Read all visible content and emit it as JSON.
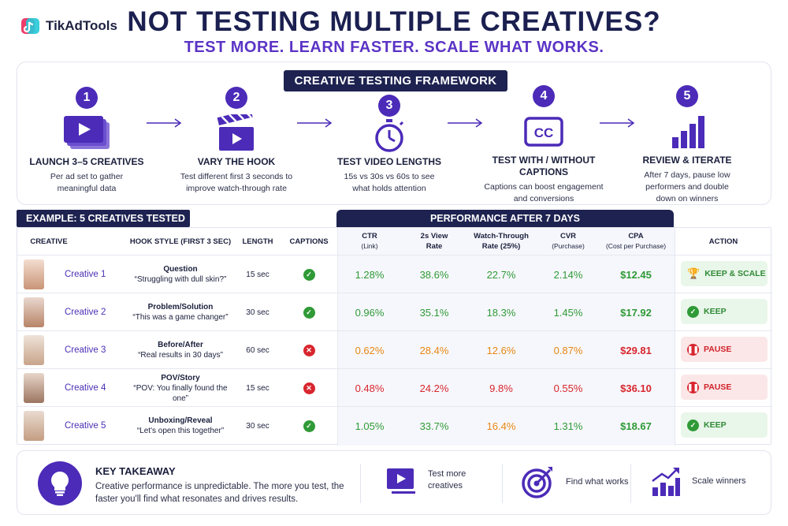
{
  "header": {
    "brand": "TikAdTools",
    "title": "NOT TESTING MULTIPLE CREATIVES?",
    "subtitle": "TEST MORE. LEARN FASTER. SCALE WHAT WORKS."
  },
  "framework": {
    "title": "CREATIVE TESTING FRAMEWORK",
    "steps": [
      {
        "num": "1",
        "icon": "video-stack-icon",
        "title": "LAUNCH 3–5 CREATIVES",
        "desc": "Per ad set to gather meaningful data"
      },
      {
        "num": "2",
        "icon": "clapperboard-icon",
        "title": "VARY THE HOOK",
        "desc": "Test different first 3 seconds to improve watch-through rate"
      },
      {
        "num": "3",
        "icon": "stopwatch-icon",
        "title": "TEST VIDEO LENGTHS",
        "desc": "15s vs 30s vs 60s to see what holds attention"
      },
      {
        "num": "4",
        "icon": "captions-icon",
        "title": "TEST WITH / WITHOUT CAPTIONS",
        "desc": "Captions can boost engagement and conversions"
      },
      {
        "num": "5",
        "icon": "bar-chart-icon",
        "title": "REVIEW & ITERATE",
        "desc": "After 7 days, pause low performers and double down on winners"
      }
    ]
  },
  "example_label": "EXAMPLE: 5 CREATIVES TESTED",
  "performance_label": "PERFORMANCE AFTER 7 DAYS",
  "table": {
    "headers": {
      "creative": "CREATIVE",
      "hook": "HOOK STYLE (FIRST 3 SEC)",
      "length": "LENGTH",
      "captions": "CAPTIONS",
      "ctr": "CTR",
      "ctr_sub": "(Link)",
      "view": "2s View",
      "view_sub": "Rate",
      "wtr": "Watch-Through",
      "wtr_sub": "Rate (25%)",
      "cvr": "CVR",
      "cvr_sub": "(Purchase)",
      "cpa": "CPA",
      "cpa_sub": "(Cost per Purchase)",
      "action": "ACTION"
    },
    "rows": [
      {
        "name": "Creative 1",
        "hook_type": "Question",
        "hook_text": "“Struggling with dull skin?”",
        "length": "15 sec",
        "captions": true,
        "ctr": "1.28%",
        "view": "38.6%",
        "wtr": "22.7%",
        "cvr": "2.14%",
        "cpa": "$12.45",
        "action": "KEEP & SCALE",
        "status": "scale"
      },
      {
        "name": "Creative 2",
        "hook_type": "Problem/Solution",
        "hook_text": "“This was a game changer”",
        "length": "30 sec",
        "captions": true,
        "ctr": "0.96%",
        "view": "35.1%",
        "wtr": "18.3%",
        "cvr": "1.45%",
        "cpa": "$17.92",
        "action": "KEEP",
        "status": "keep"
      },
      {
        "name": "Creative 3",
        "hook_type": "Before/After",
        "hook_text": "“Real results in 30 days”",
        "length": "60 sec",
        "captions": false,
        "ctr": "0.62%",
        "view": "28.4%",
        "wtr": "12.6%",
        "cvr": "0.87%",
        "cpa": "$29.81",
        "action": "PAUSE",
        "status": "pause"
      },
      {
        "name": "Creative 4",
        "hook_type": "POV/Story",
        "hook_text": "“POV: You finally found the one”",
        "length": "15 sec",
        "captions": false,
        "ctr": "0.48%",
        "view": "24.2%",
        "wtr": "9.8%",
        "cvr": "0.55%",
        "cpa": "$36.10",
        "action": "PAUSE",
        "status": "pause"
      },
      {
        "name": "Creative 5",
        "hook_type": "Unboxing/Reveal",
        "hook_text": "“Let's open this together”",
        "length": "30 sec",
        "captions": true,
        "ctr": "1.05%",
        "view": "33.7%",
        "wtr": "16.4%",
        "cvr": "1.31%",
        "cpa": "$18.67",
        "action": "KEEP",
        "status": "keep"
      }
    ]
  },
  "takeaway": {
    "title": "KEY TAKEAWAY",
    "text": "Creative performance is unpredictable. The more you test, the faster you'll find what resonates and drives results.",
    "items": [
      {
        "icon": "video-icon",
        "label": "Test more creatives"
      },
      {
        "icon": "target-icon",
        "label": "Find what works"
      },
      {
        "icon": "growth-chart-icon",
        "label": "Scale winners"
      }
    ]
  },
  "colors": {
    "navy": "#1d2250",
    "purple": "#4b2bb8",
    "green": "#2f9a36",
    "orange": "#e88712",
    "red": "#d8262e"
  }
}
